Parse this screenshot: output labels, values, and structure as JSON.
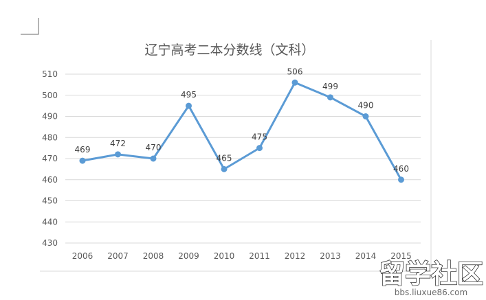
{
  "chart_data": {
    "type": "line",
    "title": "辽宁高考二本分数线（文科）",
    "categories": [
      "2006",
      "2007",
      "2008",
      "2009",
      "2010",
      "2011",
      "2012",
      "2013",
      "2014",
      "2015"
    ],
    "series": [
      {
        "values": [
          469,
          472,
          470,
          495,
          465,
          475,
          506,
          499,
          490,
          460
        ],
        "color": "#5b9bd5"
      }
    ],
    "y_ticks": [
      430,
      440,
      450,
      460,
      470,
      480,
      490,
      500,
      510
    ],
    "ylim": [
      430,
      510
    ],
    "grid": true,
    "data_labels": true,
    "legend": "none"
  },
  "watermark": {
    "main_text": "留学社区",
    "sub_text": "bbs.liuxue86.com"
  }
}
